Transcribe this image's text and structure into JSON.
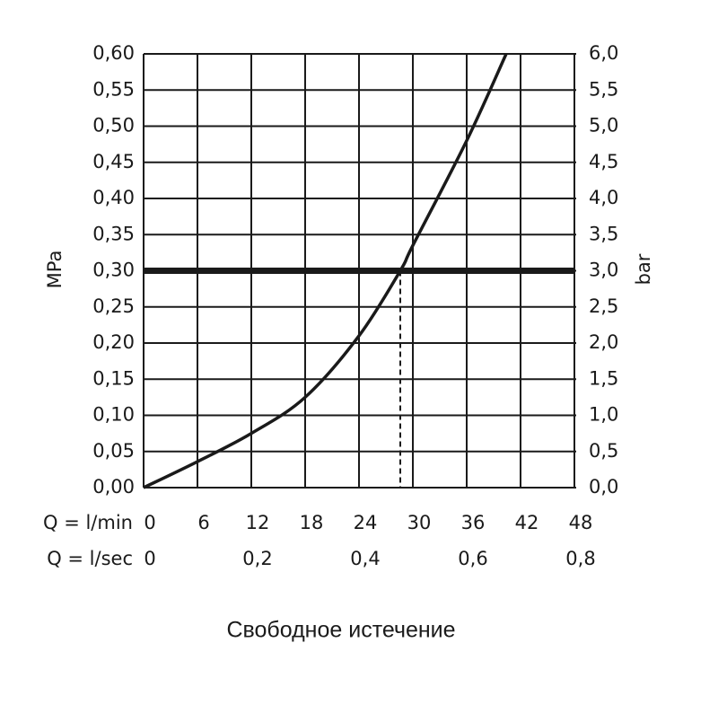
{
  "chart_data": {
    "type": "line",
    "x": [
      0,
      6,
      12,
      18,
      24,
      28.6,
      30,
      36,
      40.4
    ],
    "series": [
      {
        "color": "#1a1a1a",
        "values": [
          0,
          0.036,
          0.075,
          0.125,
          0.21,
          0.3,
          0.335,
          0.48,
          0.6
        ]
      }
    ],
    "xlabel": "Q = l/min",
    "xlim": [
      0,
      48
    ],
    "xticks": [
      0,
      6,
      12,
      18,
      24,
      30,
      36,
      42,
      48
    ],
    "x2label": "Q = l/sec",
    "x2lim": [
      0,
      0.8
    ],
    "x2ticks": [
      0,
      {
        "value": 0.2,
        "label": "0,2"
      },
      {
        "value": 0.4,
        "label": "0,4"
      },
      {
        "value": 0.6,
        "label": "0,6"
      },
      {
        "value": 0.8,
        "label": "0,8"
      }
    ],
    "ylabel": "MPa",
    "ylim": [
      0,
      0.6
    ],
    "yticks": [
      {
        "value": 0,
        "label": "0,00"
      },
      {
        "value": 0.05,
        "label": "0,05"
      },
      {
        "value": 0.1,
        "label": "0,10"
      },
      {
        "value": 0.15,
        "label": "0,15"
      },
      {
        "value": 0.2,
        "label": "0,20"
      },
      {
        "value": 0.25,
        "label": "0,25"
      },
      {
        "value": 0.3,
        "label": "0,30"
      },
      {
        "value": 0.35,
        "label": "0,35"
      },
      {
        "value": 0.4,
        "label": "0,40"
      },
      {
        "value": 0.45,
        "label": "0,45"
      },
      {
        "value": 0.5,
        "label": "0,50"
      },
      {
        "value": 0.55,
        "label": "0,55"
      },
      {
        "value": 0.6,
        "label": "0,60"
      }
    ],
    "y2label": "bar",
    "y2lim": [
      0,
      6
    ],
    "y2ticks": [
      {
        "value": 0,
        "label": "0,0"
      },
      {
        "value": 0.5,
        "label": "0,5"
      },
      {
        "value": 1,
        "label": "1,0"
      },
      {
        "value": 1.5,
        "label": "1,5"
      },
      {
        "value": 2,
        "label": "2,0"
      },
      {
        "value": 2.5,
        "label": "2,5"
      },
      {
        "value": 3,
        "label": "3,0"
      },
      {
        "value": 3.5,
        "label": "3,5"
      },
      {
        "value": 4,
        "label": "4,0"
      },
      {
        "value": 4.5,
        "label": "4,5"
      },
      {
        "value": 5,
        "label": "5,0"
      },
      {
        "value": 5.5,
        "label": "5,5"
      },
      {
        "value": 6,
        "label": "6,0"
      }
    ],
    "reference": {
      "y": 0.3,
      "x": 28.6
    },
    "grid": true,
    "caption": "Свободное истечение"
  }
}
